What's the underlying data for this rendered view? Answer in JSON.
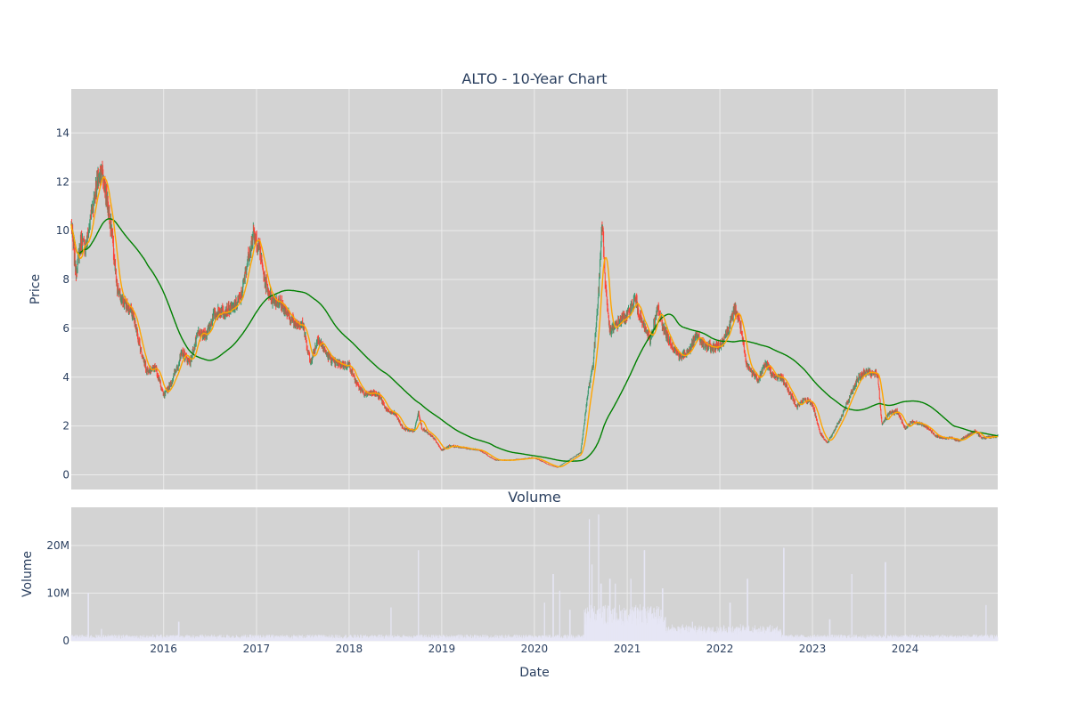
{
  "colors": {
    "plot_bg": "#d3d3d3",
    "grid": "#ebebeb",
    "candle_up": "#3d9970",
    "candle_down": "#ff4136",
    "ma_short": "#ffa500",
    "ma_long": "#008000",
    "volume": "#e6e6f5",
    "text": "#2a3f5f"
  },
  "chart_data": [
    {
      "type": "candlestick",
      "title": "ALTO - 10-Year Chart",
      "ylabel": "Price",
      "xrange": [
        "2015-01-02",
        "2024-12-31"
      ],
      "ylim": [
        -0.6,
        15.8
      ],
      "yticks": [
        0,
        2,
        4,
        6,
        8,
        10,
        12,
        14
      ],
      "ytick_labels": [
        "0",
        "2",
        "4",
        "6",
        "8",
        "10",
        "12",
        "14"
      ],
      "grid": true,
      "legend": "none",
      "price_path": [
        [
          "2015-01-02",
          10.2
        ],
        [
          "2015-01-20",
          8.3
        ],
        [
          "2015-02-10",
          9.6
        ],
        [
          "2015-03-01",
          9.3
        ],
        [
          "2015-03-20",
          10.6
        ],
        [
          "2015-04-10",
          11.8
        ],
        [
          "2015-05-01",
          12.5
        ],
        [
          "2015-05-20",
          11.5
        ],
        [
          "2015-06-10",
          10.0
        ],
        [
          "2015-07-01",
          7.6
        ],
        [
          "2015-08-01",
          7.0
        ],
        [
          "2015-09-01",
          6.6
        ],
        [
          "2015-10-01",
          5.2
        ],
        [
          "2015-10-25",
          4.3
        ],
        [
          "2015-12-01",
          4.4
        ],
        [
          "2016-01-01",
          3.2
        ],
        [
          "2016-02-01",
          3.8
        ],
        [
          "2016-03-15",
          5.0
        ],
        [
          "2016-04-15",
          4.6
        ],
        [
          "2016-05-15",
          5.8
        ],
        [
          "2016-06-15",
          5.7
        ],
        [
          "2016-07-15",
          6.5
        ],
        [
          "2016-08-15",
          6.7
        ],
        [
          "2016-10-01",
          6.8
        ],
        [
          "2016-11-01",
          7.3
        ],
        [
          "2016-12-01",
          9.0
        ],
        [
          "2016-12-20",
          9.8
        ],
        [
          "2017-01-10",
          9.4
        ],
        [
          "2017-02-01",
          8.0
        ],
        [
          "2017-03-01",
          7.2
        ],
        [
          "2017-04-01",
          7.1
        ],
        [
          "2017-05-01",
          6.6
        ],
        [
          "2017-06-01",
          6.2
        ],
        [
          "2017-07-01",
          6.2
        ],
        [
          "2017-08-01",
          4.6
        ],
        [
          "2017-09-01",
          5.6
        ],
        [
          "2017-10-01",
          5.0
        ],
        [
          "2017-11-01",
          4.6
        ],
        [
          "2017-12-01",
          4.5
        ],
        [
          "2018-01-01",
          4.5
        ],
        [
          "2018-02-01",
          3.7
        ],
        [
          "2018-03-01",
          3.3
        ],
        [
          "2018-04-01",
          3.4
        ],
        [
          "2018-05-01",
          3.2
        ],
        [
          "2018-06-01",
          2.6
        ],
        [
          "2018-07-01",
          2.5
        ],
        [
          "2018-08-01",
          1.9
        ],
        [
          "2018-09-15",
          1.8
        ],
        [
          "2018-10-01",
          2.6
        ],
        [
          "2018-10-15",
          1.9
        ],
        [
          "2018-12-01",
          1.5
        ],
        [
          "2019-01-01",
          1.0
        ],
        [
          "2019-02-01",
          1.2
        ],
        [
          "2019-04-01",
          1.1
        ],
        [
          "2019-06-01",
          1.0
        ],
        [
          "2019-08-01",
          0.6
        ],
        [
          "2019-10-01",
          0.6
        ],
        [
          "2020-01-01",
          0.7
        ],
        [
          "2020-03-01",
          0.4
        ],
        [
          "2020-04-01",
          0.3
        ],
        [
          "2020-05-01",
          0.5
        ],
        [
          "2020-06-01",
          0.7
        ],
        [
          "2020-07-01",
          0.9
        ],
        [
          "2020-08-01",
          3.5
        ],
        [
          "2020-08-20",
          4.6
        ],
        [
          "2020-09-10",
          7.5
        ],
        [
          "2020-09-25",
          10.5
        ],
        [
          "2020-10-05",
          8.0
        ],
        [
          "2020-10-25",
          5.8
        ],
        [
          "2020-12-01",
          6.3
        ],
        [
          "2021-01-01",
          6.5
        ],
        [
          "2021-02-01",
          7.2
        ],
        [
          "2021-03-01",
          6.2
        ],
        [
          "2021-04-01",
          5.5
        ],
        [
          "2021-05-01",
          6.8
        ],
        [
          "2021-06-01",
          5.8
        ],
        [
          "2021-07-01",
          5.2
        ],
        [
          "2021-08-01",
          4.8
        ],
        [
          "2021-09-01",
          5.1
        ],
        [
          "2021-10-01",
          5.7
        ],
        [
          "2021-11-01",
          5.3
        ],
        [
          "2021-12-01",
          5.2
        ],
        [
          "2022-01-01",
          5.3
        ],
        [
          "2022-02-01",
          5.9
        ],
        [
          "2022-03-01",
          6.8
        ],
        [
          "2022-03-20",
          6.3
        ],
        [
          "2022-04-15",
          4.5
        ],
        [
          "2022-06-01",
          3.9
        ],
        [
          "2022-07-01",
          4.6
        ],
        [
          "2022-08-01",
          4.0
        ],
        [
          "2022-09-01",
          4.0
        ],
        [
          "2022-10-01",
          3.4
        ],
        [
          "2022-11-01",
          2.8
        ],
        [
          "2022-12-01",
          3.1
        ],
        [
          "2023-01-01",
          2.9
        ],
        [
          "2023-02-01",
          1.7
        ],
        [
          "2023-03-01",
          1.3
        ],
        [
          "2023-04-01",
          1.9
        ],
        [
          "2023-05-01",
          2.5
        ],
        [
          "2023-06-01",
          3.3
        ],
        [
          "2023-07-01",
          4.0
        ],
        [
          "2023-08-01",
          4.2
        ],
        [
          "2023-09-15",
          4.1
        ],
        [
          "2023-10-01",
          2.1
        ],
        [
          "2023-11-01",
          2.5
        ],
        [
          "2023-12-01",
          2.6
        ],
        [
          "2024-01-01",
          1.9
        ],
        [
          "2024-02-01",
          2.2
        ],
        [
          "2024-03-01",
          2.1
        ],
        [
          "2024-04-01",
          1.9
        ],
        [
          "2024-05-01",
          1.6
        ],
        [
          "2024-06-01",
          1.5
        ],
        [
          "2024-07-01",
          1.5
        ],
        [
          "2024-08-01",
          1.4
        ],
        [
          "2024-09-01",
          1.6
        ],
        [
          "2024-10-01",
          1.8
        ],
        [
          "2024-11-01",
          1.5
        ],
        [
          "2024-12-31",
          1.6
        ]
      ]
    },
    {
      "type": "bar",
      "title": "Volume",
      "xlabel": "Date",
      "ylabel": "Volume",
      "ylim": [
        0,
        28000000
      ],
      "yticks": [
        0,
        10000000,
        20000000
      ],
      "ytick_labels": [
        "0",
        "10M",
        "20M"
      ],
      "xticks": [
        "2016-01-01",
        "2017-01-01",
        "2018-01-01",
        "2019-01-01",
        "2020-01-01",
        "2021-01-01",
        "2022-01-01",
        "2023-01-01",
        "2024-01-01"
      ],
      "xtick_labels": [
        "2016",
        "2017",
        "2018",
        "2019",
        "2020",
        "2021",
        "2022",
        "2023",
        "2024"
      ],
      "grid": true,
      "volume_spikes": [
        [
          "2015-03-10",
          10000000
        ],
        [
          "2015-05-01",
          2500000
        ],
        [
          "2016-03-01",
          4000000
        ],
        [
          "2018-06-15",
          7000000
        ],
        [
          "2018-10-01",
          19000000
        ],
        [
          "2020-02-10",
          8000000
        ],
        [
          "2020-03-15",
          14000000
        ],
        [
          "2020-04-10",
          10500000
        ],
        [
          "2020-05-20",
          6500000
        ],
        [
          "2020-08-05",
          25500000
        ],
        [
          "2020-08-15",
          16000000
        ],
        [
          "2020-09-10",
          26500000
        ],
        [
          "2020-09-20",
          12000000
        ],
        [
          "2020-10-25",
          13000000
        ],
        [
          "2020-11-15",
          12000000
        ],
        [
          "2021-01-15",
          13000000
        ],
        [
          "2021-03-10",
          19000000
        ],
        [
          "2021-05-20",
          11000000
        ],
        [
          "2021-09-15",
          4000000
        ],
        [
          "2022-02-10",
          8000000
        ],
        [
          "2022-04-20",
          13000000
        ],
        [
          "2022-09-10",
          19500000
        ],
        [
          "2023-03-10",
          4500000
        ],
        [
          "2023-06-05",
          14000000
        ],
        [
          "2023-10-15",
          16500000
        ],
        [
          "2024-11-15",
          7500000
        ]
      ]
    }
  ]
}
